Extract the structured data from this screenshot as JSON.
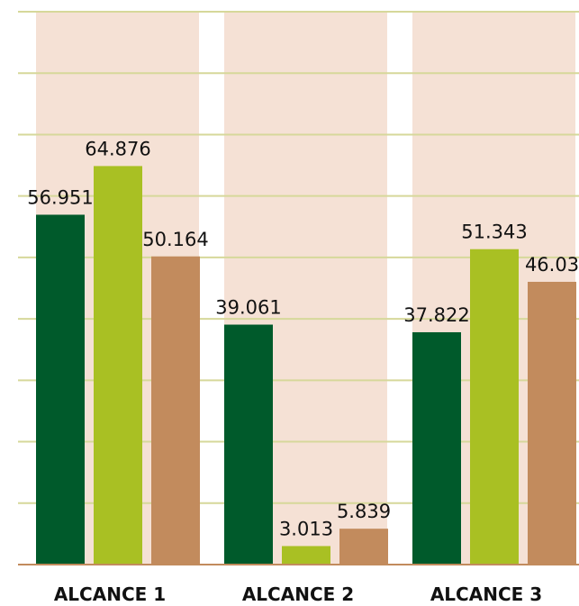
{
  "chart_data": {
    "type": "bar",
    "categories": [
      "ALCANCE 1",
      "ALCANCE 2",
      "ALCANCE 3"
    ],
    "series": [
      {
        "color": "#005a2b",
        "values": [
          56.951,
          39.061,
          37.822
        ]
      },
      {
        "color": "#a9c023",
        "values": [
          64.876,
          3.013,
          51.343
        ]
      },
      {
        "color": "#c28b5d",
        "values": [
          50.164,
          5.839,
          46.03
        ]
      }
    ],
    "ylim": [
      0,
      90
    ],
    "yticks": [
      0,
      10,
      20,
      30,
      40,
      50,
      60,
      70,
      80,
      90
    ],
    "grid": true
  }
}
